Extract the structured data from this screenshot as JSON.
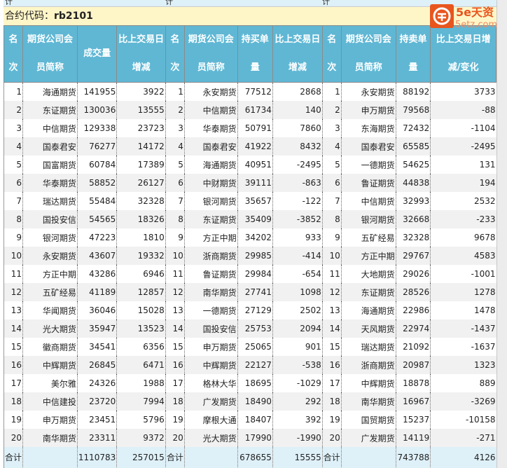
{
  "top_strip": [
    "计",
    "计",
    "计"
  ],
  "contract": {
    "label": "合约代码：",
    "code": "rb2101"
  },
  "watermark": {
    "text": "5e天资",
    "url_text": "5etz.com",
    "color": "#e8561e"
  },
  "headers": {
    "rank": [
      "名",
      "次"
    ],
    "company": [
      "期货公司会",
      "员简称"
    ],
    "volume": "成交量",
    "change": [
      "比上交易日",
      "增减"
    ],
    "long": [
      "持买单",
      "量"
    ],
    "short": [
      "持卖单",
      "量"
    ],
    "change_last": [
      "比上交易日增",
      "减/变化"
    ]
  },
  "rows": [
    [
      "1",
      "海通期货",
      "141955",
      "3922",
      "1",
      "永安期货",
      "77512",
      "2868",
      "1",
      "永安期货",
      "88192",
      "3733"
    ],
    [
      "2",
      "东证期货",
      "130036",
      "13555",
      "2",
      "中信期货",
      "61734",
      "140",
      "2",
      "申万期货",
      "79568",
      "-88"
    ],
    [
      "3",
      "中信期货",
      "129338",
      "23723",
      "3",
      "华泰期货",
      "50791",
      "7860",
      "3",
      "东海期货",
      "72432",
      "-1104"
    ],
    [
      "4",
      "国泰君安",
      "76277",
      "14172",
      "4",
      "国泰君安",
      "41922",
      "8432",
      "4",
      "国泰君安",
      "65585",
      "-2495"
    ],
    [
      "5",
      "国富期货",
      "60784",
      "17389",
      "5",
      "海通期货",
      "40951",
      "-2495",
      "5",
      "一德期货",
      "54625",
      "131"
    ],
    [
      "6",
      "华泰期货",
      "58852",
      "26127",
      "6",
      "中财期货",
      "39111",
      "-863",
      "6",
      "鲁证期货",
      "44838",
      "194"
    ],
    [
      "7",
      "瑞达期货",
      "55484",
      "32328",
      "7",
      "银河期货",
      "35657",
      "-122",
      "7",
      "中信期货",
      "32993",
      "2532"
    ],
    [
      "8",
      "国投安信",
      "54565",
      "18326",
      "8",
      "东证期货",
      "35409",
      "-3852",
      "8",
      "银河期货",
      "32668",
      "-233"
    ],
    [
      "9",
      "银河期货",
      "47223",
      "1810",
      "9",
      "方正中期",
      "34202",
      "933",
      "9",
      "五矿经易",
      "32328",
      "9678"
    ],
    [
      "10",
      "永安期货",
      "43607",
      "19332",
      "10",
      "浙商期货",
      "29985",
      "-414",
      "10",
      "方正中期",
      "29767",
      "4583"
    ],
    [
      "11",
      "方正中期",
      "43286",
      "6946",
      "11",
      "鲁证期货",
      "29984",
      "-654",
      "11",
      "大地期货",
      "29026",
      "-1001"
    ],
    [
      "12",
      "五矿经易",
      "41189",
      "12857",
      "12",
      "南华期货",
      "27741",
      "1098",
      "12",
      "东证期货",
      "28526",
      "1278"
    ],
    [
      "13",
      "华闻期货",
      "36046",
      "15028",
      "13",
      "一德期货",
      "27129",
      "2502",
      "13",
      "海通期货",
      "22986",
      "1478"
    ],
    [
      "14",
      "光大期货",
      "35947",
      "13523",
      "14",
      "国投安信",
      "25753",
      "2094",
      "14",
      "天风期货",
      "22974",
      "-1437"
    ],
    [
      "15",
      "徽商期货",
      "34541",
      "6356",
      "15",
      "申万期货",
      "25065",
      "901",
      "15",
      "瑞达期货",
      "21092",
      "-1637"
    ],
    [
      "16",
      "中辉期货",
      "26845",
      "6471",
      "16",
      "中辉期货",
      "22127",
      "-538",
      "16",
      "浙商期货",
      "20987",
      "1323"
    ],
    [
      "17",
      "美尔雅",
      "24326",
      "1988",
      "17",
      "格林大华",
      "18695",
      "-1029",
      "17",
      "中辉期货",
      "18878",
      "889"
    ],
    [
      "18",
      "中信建投",
      "23720",
      "7994",
      "18",
      "广发期货",
      "18490",
      "292",
      "18",
      "南华期货",
      "16967",
      "-3269"
    ],
    [
      "19",
      "申万期货",
      "23451",
      "5796",
      "19",
      "摩根大通",
      "18407",
      "392",
      "19",
      "国贸期货",
      "15237",
      "-10158"
    ],
    [
      "20",
      "南华期货",
      "23311",
      "9372",
      "20",
      "光大期货",
      "17990",
      "-1990",
      "20",
      "广发期货",
      "14119",
      "-271"
    ]
  ],
  "total": {
    "label": "合计",
    "volume": "1110783",
    "volume_change": "257015",
    "long": "678655",
    "long_change": "15555",
    "short": "743788",
    "short_change": "4126"
  }
}
